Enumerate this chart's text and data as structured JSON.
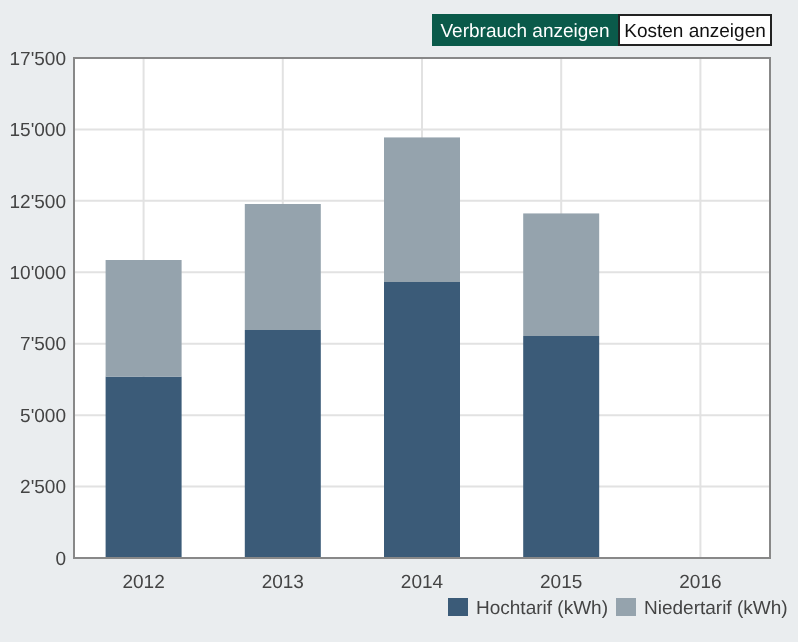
{
  "chart_data": {
    "type": "bar",
    "stacked": true,
    "categories": [
      "2012",
      "2013",
      "2014",
      "2015",
      "2016"
    ],
    "series": [
      {
        "name": "Hochtarif (kWh)",
        "color": "#3b5b78",
        "values": [
          6350,
          7980,
          9660,
          7770,
          null
        ]
      },
      {
        "name": "Niedertarif (kWh)",
        "color": "#95a3ad",
        "values": [
          4080,
          4410,
          5060,
          4290,
          null
        ]
      }
    ],
    "ylim": [
      0,
      17500
    ],
    "yticks": [
      {
        "value": 0,
        "label": "0"
      },
      {
        "value": 2500,
        "label": "2'500"
      },
      {
        "value": 5000,
        "label": "5'000"
      },
      {
        "value": 7500,
        "label": "7'500"
      },
      {
        "value": 10000,
        "label": "10'000"
      },
      {
        "value": 12500,
        "label": "12'500"
      },
      {
        "value": 15000,
        "label": "15'000"
      },
      {
        "value": 17500,
        "label": "17'500"
      }
    ],
    "grid": true,
    "legend": "bottom right",
    "annotations": [
      "Verbrauch anzeigen",
      "Kosten anzeigen"
    ]
  }
}
